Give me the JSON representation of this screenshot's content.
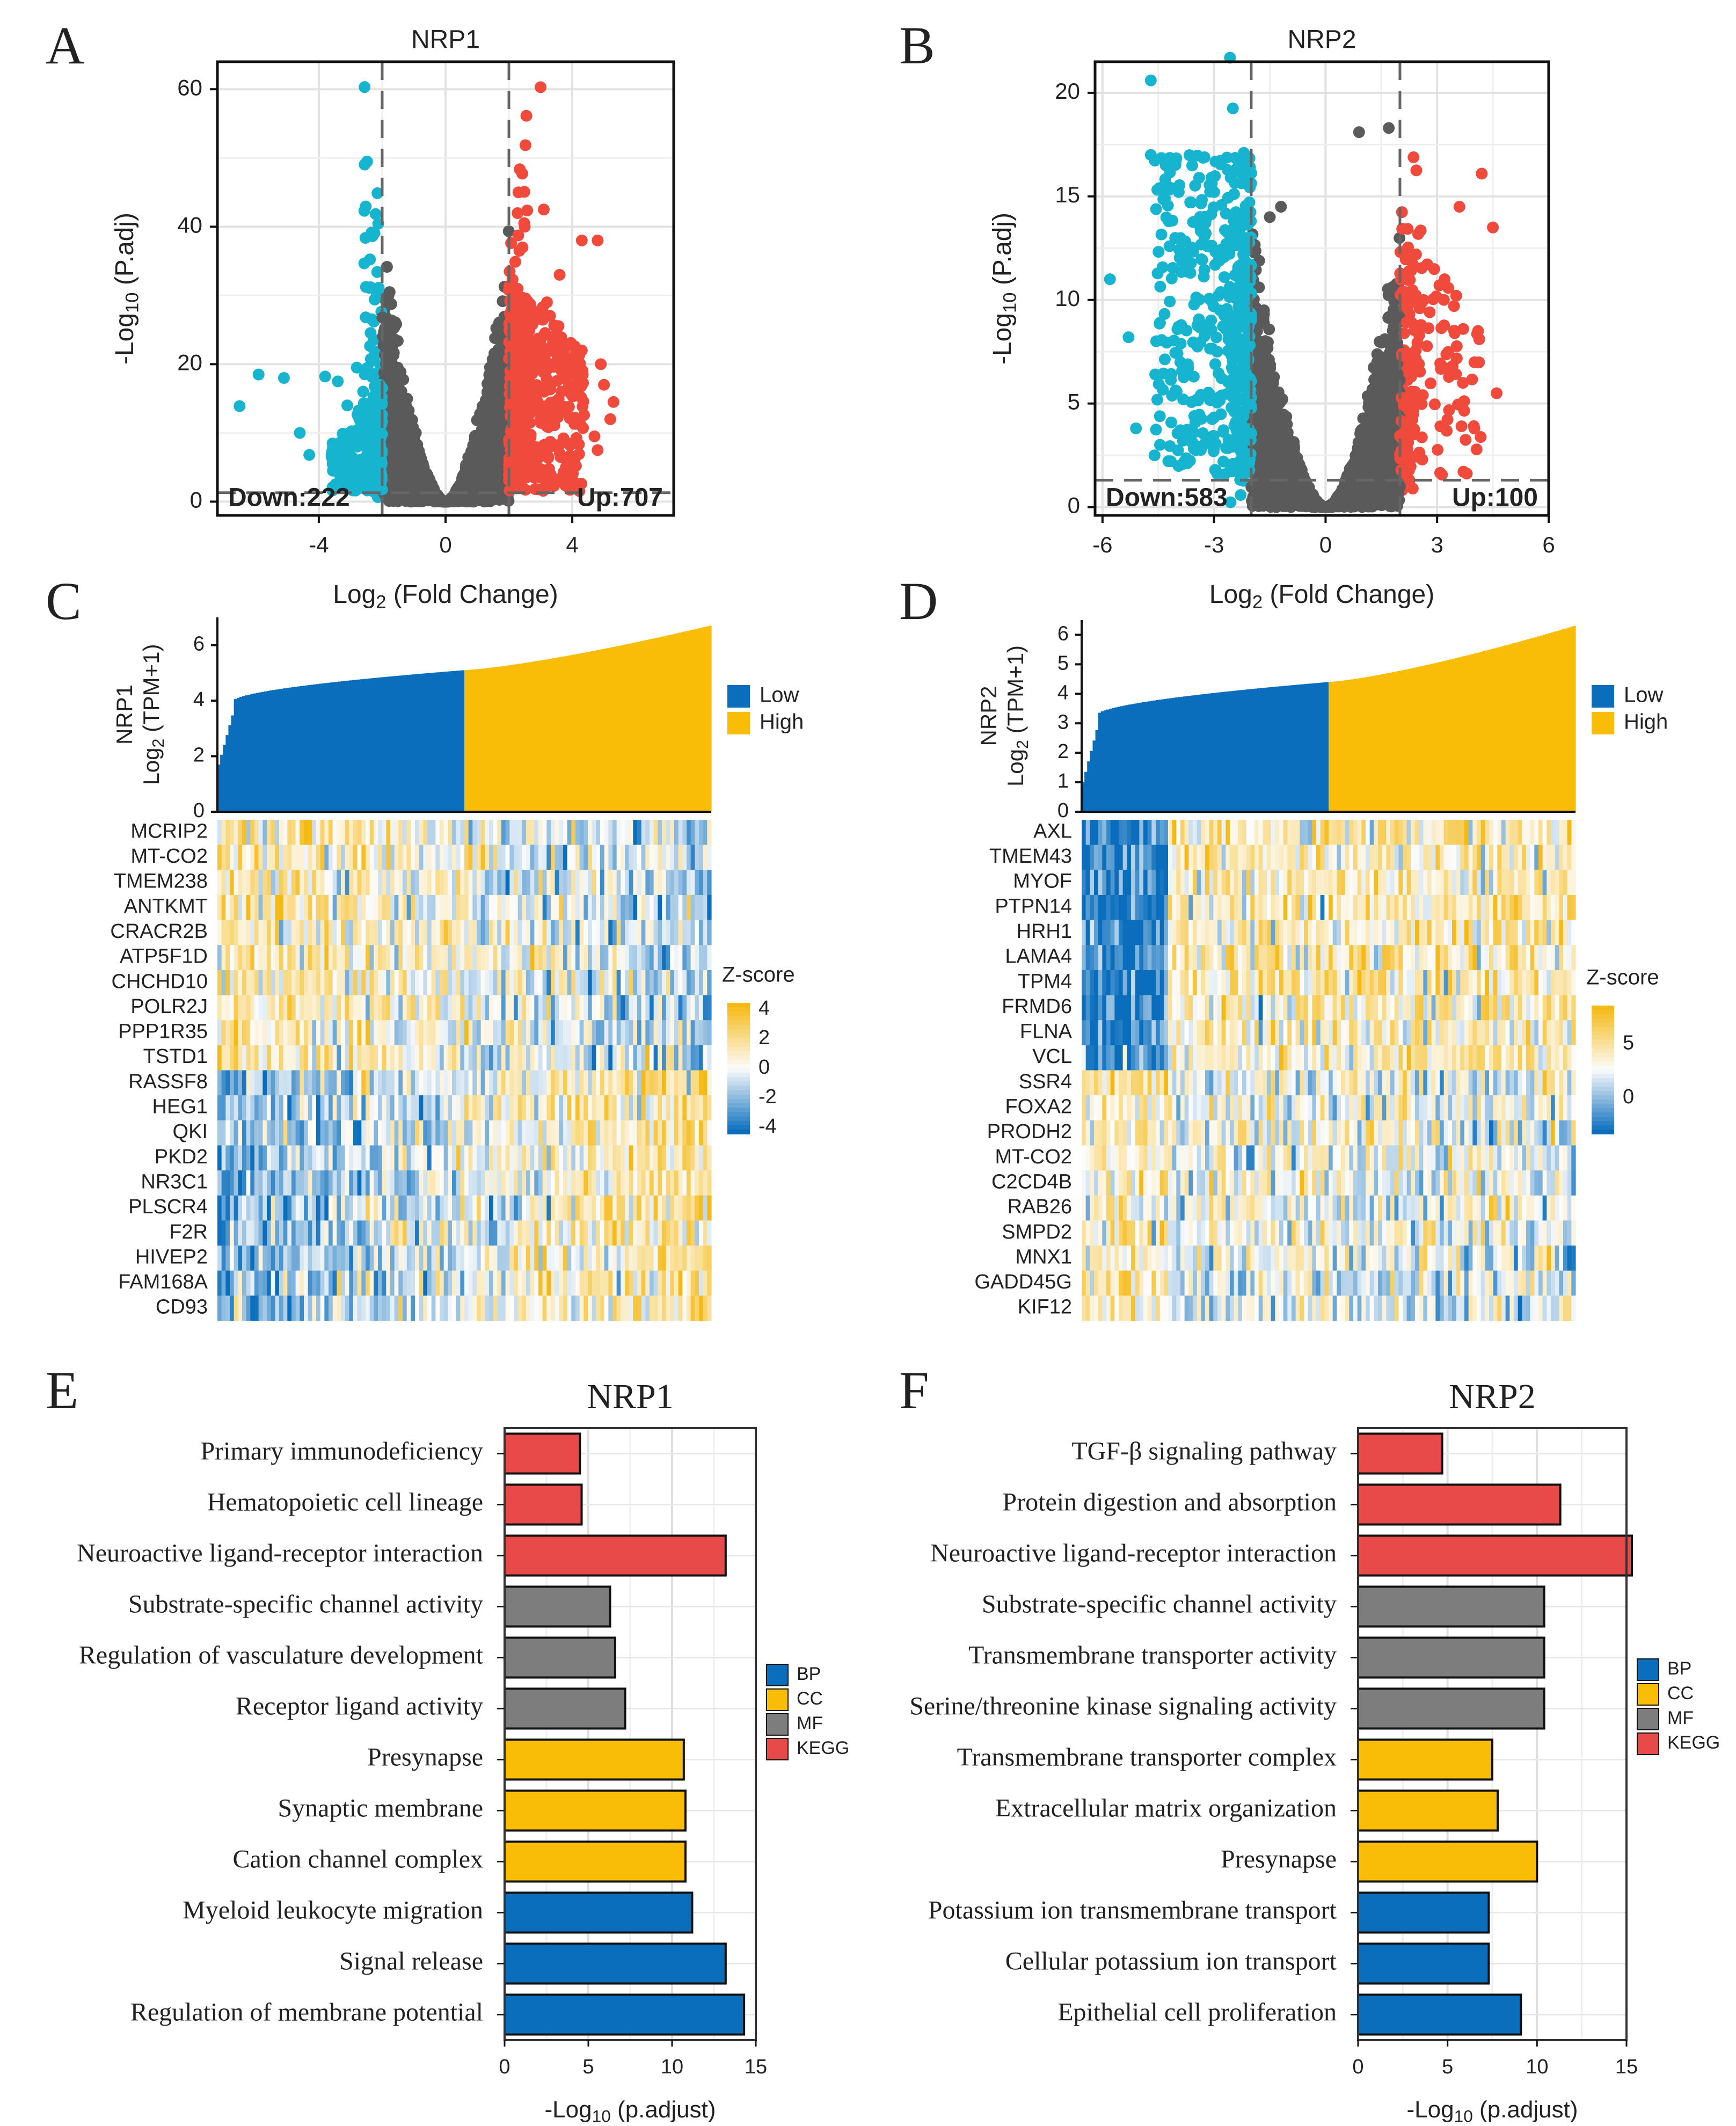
{
  "colors": {
    "down": "#17b4cf",
    "up": "#ef4a3c",
    "ns": "#5a5a5a",
    "low": "#0a6ebd",
    "high": "#f9bd07",
    "BP": "#0a6ebd",
    "CC": "#f9bd07",
    "MF": "#7d7d7d",
    "KEGG": "#e84a4a"
  },
  "panel_letters": {
    "A": "A",
    "B": "B",
    "C": "C",
    "D": "D",
    "E": "E",
    "F": "F"
  },
  "chart_data": [
    {
      "id": "A",
      "type": "scatter",
      "title": "NRP1",
      "xlabel_main": "Log",
      "xlabel_sub": "2",
      "xlabel_rest": " (Fold Change)",
      "ylabel_main": "-Log",
      "ylabel_sub": "10",
      "ylabel_rest": " (P.adj)",
      "xlim": [
        -7.2,
        7.2
      ],
      "ylim": [
        -2,
        64
      ],
      "xticks": [
        -4,
        0,
        4
      ],
      "xtick_labels": [
        "-4",
        "0",
        "4"
      ],
      "yticks": [
        0,
        20,
        40,
        60
      ],
      "ytick_labels": [
        "0",
        "20",
        "40",
        "60"
      ],
      "fc_threshold": [
        -2,
        2
      ],
      "p_threshold": 1.3,
      "ns_ymax": 50,
      "down_label": "Down:222",
      "up_label": "Up:707",
      "down_count": 222,
      "up_count": 707,
      "down_points": [
        [
          -6.5,
          13.9
        ],
        [
          -5.9,
          18.5
        ],
        [
          -5.1,
          18
        ],
        [
          -4.6,
          10
        ],
        [
          -4.3,
          6.8
        ],
        [
          -3.8,
          18.2
        ],
        [
          -3.4,
          17.5
        ],
        [
          -3.1,
          14
        ],
        [
          -2.8,
          19.5
        ],
        [
          -2.6,
          16
        ],
        [
          -2.3,
          20.5
        ],
        [
          -2.4,
          9.5
        ],
        [
          -3.2,
          7.5
        ],
        [
          -2.9,
          5
        ],
        [
          -2.5,
          3
        ]
      ],
      "up_points": [
        [
          3.0,
          60.3
        ],
        [
          3.1,
          42.5
        ],
        [
          4.3,
          38
        ],
        [
          4.8,
          38
        ],
        [
          2.3,
          45
        ],
        [
          2.5,
          40
        ],
        [
          3.6,
          33
        ],
        [
          3.2,
          29
        ],
        [
          4.3,
          22
        ],
        [
          4.9,
          20
        ],
        [
          5.0,
          17
        ],
        [
          5.3,
          14.5
        ],
        [
          5.2,
          12
        ],
        [
          4.7,
          9.5
        ],
        [
          4.8,
          7.5
        ],
        [
          3.8,
          5
        ],
        [
          3.2,
          3
        ]
      ]
    },
    {
      "id": "B",
      "type": "scatter",
      "title": "NRP2",
      "xlabel_main": "Log",
      "xlabel_sub": "2",
      "xlabel_rest": " (Fold Change)",
      "ylabel_main": "-Log",
      "ylabel_sub": "10",
      "ylabel_rest": " (P.adj)",
      "xlim": [
        -6.2,
        6
      ],
      "ylim": [
        -0.4,
        21.5
      ],
      "xticks": [
        -6,
        -3,
        0,
        3,
        6
      ],
      "xtick_labels": [
        "-6",
        "-3",
        "0",
        "3",
        "6"
      ],
      "yticks": [
        0,
        5,
        10,
        15,
        20
      ],
      "ytick_labels": [
        "0",
        "5",
        "10",
        "15",
        "20"
      ],
      "fc_threshold": [
        -2,
        2
      ],
      "p_threshold": 1.3,
      "ns_ymax": 18.3,
      "down_label": "Down:583",
      "up_label": "Up:100",
      "down_count": 583,
      "up_count": 100,
      "down_points": [
        [
          -4.7,
          20.6
        ],
        [
          -4.7,
          17
        ],
        [
          -5.8,
          11
        ],
        [
          -5.3,
          8.2
        ],
        [
          -4.3,
          16.5
        ],
        [
          -2.2,
          17.1
        ],
        [
          -3.4,
          15.9
        ],
        [
          -5.1,
          3.8
        ],
        [
          -4.6,
          2.5
        ]
      ],
      "up_points": [
        [
          4.2,
          16.1
        ],
        [
          3.6,
          14.5
        ],
        [
          4.5,
          13.5
        ],
        [
          4.6,
          5.5
        ],
        [
          4.0,
          3.8
        ],
        [
          2.6,
          2.3
        ],
        [
          2.2,
          2.8
        ],
        [
          4.1,
          8.5
        ],
        [
          3.2,
          11
        ]
      ],
      "ns_outliers": [
        [
          0.9,
          18.1
        ],
        [
          1.7,
          18.3
        ],
        [
          -1.2,
          14.5
        ],
        [
          -1.5,
          14
        ]
      ]
    },
    {
      "id": "C",
      "type": "heatmap",
      "gene": "NRP1",
      "ylabel_line1": "NRP1",
      "ylabel_line2_main": "Log",
      "ylabel_line2_sub": "2",
      "ylabel_line2_rest": " (TPM+1)",
      "bar_ylim": [
        0,
        7
      ],
      "bar_yticks": [
        "0",
        "2",
        "4",
        "6"
      ],
      "expression_range": [
        1.7,
        6.7
      ],
      "split_value": 5.1,
      "legend_low": "Low",
      "legend_high": "High",
      "zscore_title": "Z-score",
      "zscore_ticks": [
        "4",
        "2",
        "0",
        "-2",
        "-4"
      ],
      "genes_group1": [
        "MCRIP2",
        "MT-CO2",
        "TMEM238",
        "ANTKMT",
        "CRACR2B",
        "ATP5F1D",
        "CHCHD10",
        "POLR2J",
        "PPP1R35",
        "TSTD1"
      ],
      "genes_group2": [
        "RASSF8",
        "HEG1",
        "QKI",
        "PKD2",
        "NR3C1",
        "PLSCR4",
        "F2R",
        "HIVEP2",
        "FAM168A",
        "CD93"
      ]
    },
    {
      "id": "D",
      "type": "heatmap",
      "gene": "NRP2",
      "ylabel_line1": "NRP2",
      "ylabel_line2_main": "Log",
      "ylabel_line2_sub": "2",
      "ylabel_line2_rest": " (TPM+1)",
      "bar_ylim": [
        0,
        6.5
      ],
      "bar_yticks": [
        "0",
        "1",
        "2",
        "3",
        "4",
        "5",
        "6"
      ],
      "expression_range": [
        1.0,
        6.3
      ],
      "split_value": 4.4,
      "legend_low": "Low",
      "legend_high": "High",
      "zscore_title": "Z-score",
      "zscore_ticks": [
        "5",
        "0"
      ],
      "genes_group1": [
        "AXL",
        "TMEM43",
        "MYOF",
        "PTPN14",
        "HRH1",
        "LAMA4",
        "TPM4",
        "FRMD6",
        "FLNA",
        "VCL"
      ],
      "genes_group2": [
        "SSR4",
        "FOXA2",
        "PRODH2",
        "MT-CO2",
        "C2CD4B",
        "RAB26",
        "SMPD2",
        "MNX1",
        "GADD45G",
        "KIF12"
      ]
    },
    {
      "id": "E",
      "type": "bar",
      "title": "NRP1",
      "xlabel_main": "-Log",
      "xlabel_sub": "10",
      "xlabel_rest": " (p.adjust)",
      "xlim": [
        0,
        15
      ],
      "xticks": [
        "0",
        "5",
        "10",
        "15"
      ],
      "categories": [
        "Primary immunodeficiency",
        "Hematopoietic cell lineage",
        "Neuroactive ligand-receptor interaction",
        "Substrate-specific channel activity",
        "Regulation of vasculature development",
        "Receptor ligand activity",
        "Presynapse",
        "Synaptic membrane",
        "Cation channel complex",
        "Myeloid leukocyte migration",
        "Signal release",
        "Regulation of membrane potential"
      ],
      "values": [
        4.5,
        4.6,
        13.2,
        6.3,
        6.6,
        7.2,
        10.7,
        10.8,
        10.8,
        11.2,
        13.2,
        14.3
      ],
      "groups": [
        "KEGG",
        "KEGG",
        "KEGG",
        "MF",
        "MF",
        "MF",
        "CC",
        "CC",
        "CC",
        "BP",
        "BP",
        "BP"
      ],
      "legend": [
        "BP",
        "CC",
        "MF",
        "KEGG"
      ]
    },
    {
      "id": "F",
      "type": "bar",
      "title": "NRP2",
      "xlabel_main": "-Log",
      "xlabel_sub": "10",
      "xlabel_rest": " (p.adjust)",
      "xlim": [
        0,
        15
      ],
      "xticks": [
        "0",
        "5",
        "10",
        "15"
      ],
      "categories": [
        "TGF-β signaling pathway",
        "Protein digestion and absorption",
        "Neuroactive ligand-receptor interaction",
        "Substrate-specific channel activity",
        "Transmembrane transporter activity",
        "Serine/threonine kinase signaling activity",
        "Transmembrane transporter complex",
        "Extracellular matrix organization",
        "Presynapse",
        "Potassium ion transmembrane transport",
        "Cellular potassium ion transport",
        "Epithelial cell proliferation"
      ],
      "values": [
        4.7,
        11.3,
        15.3,
        10.4,
        10.4,
        10.4,
        7.5,
        7.8,
        10.0,
        7.3,
        7.3,
        9.1
      ],
      "groups": [
        "KEGG",
        "KEGG",
        "KEGG",
        "MF",
        "MF",
        "MF",
        "CC",
        "CC",
        "CC",
        "BP",
        "BP",
        "BP"
      ],
      "legend": [
        "BP",
        "CC",
        "MF",
        "KEGG"
      ]
    }
  ]
}
